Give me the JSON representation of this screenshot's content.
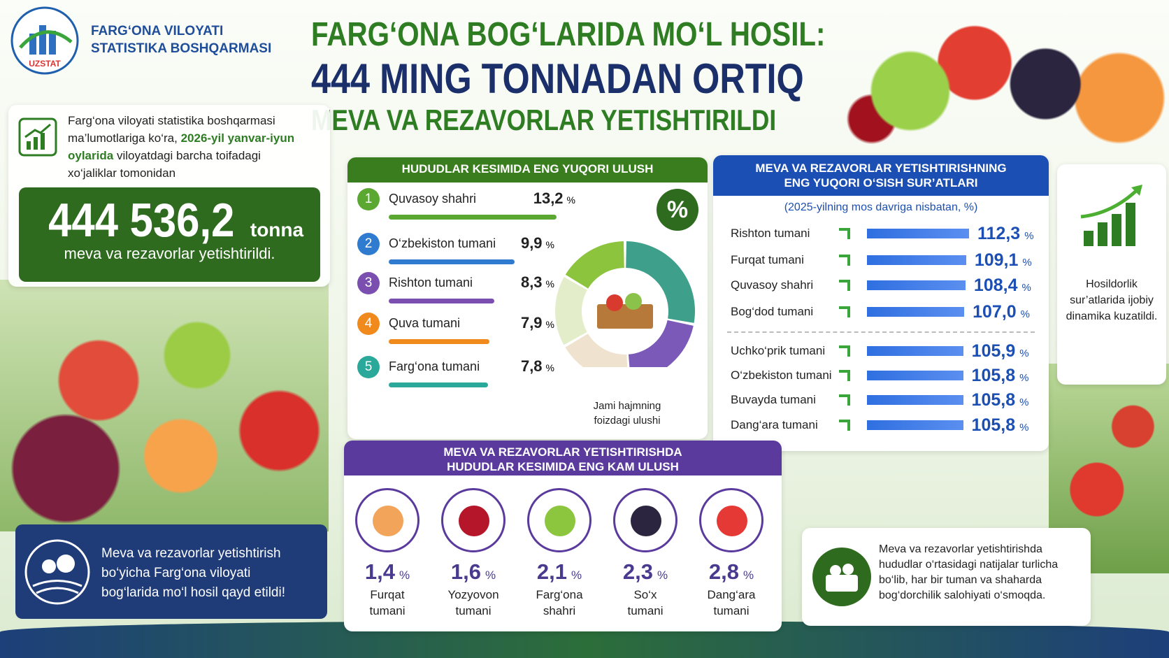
{
  "header": {
    "org_lines": [
      "FARG‘ONA VILOYATI",
      "STATISTIKA BOSHQARMASI"
    ],
    "logo_text": "UZSTAT",
    "title_lines": [
      "FARG‘ONA BOG‘LARIDA MO‘L HOSIL:",
      "444 MING TONNADAN ORTIQ",
      "MEVA VA REZAVORLAR YETISHTIRILDI"
    ]
  },
  "intro": {
    "before": "Farg‘ona viloyati statistika boshqarmasi ma’lumotlariga ko‘ra,",
    "bold": "2026-yil yanvar-iyun oylarida",
    "after": "viloyatdagi barcha toifadagi xo‘jaliklar tomonidan"
  },
  "total": {
    "value": "444 536,2",
    "unit": "tonna",
    "caption": "meva va rezavorlar yetishtirildi."
  },
  "top_share": {
    "title": "HUDUDLAR KESIMIDA ENG YUQORI ULUSH",
    "unit": "%",
    "symbol": "%",
    "donut_caption": "Jami hajmning foizdagi ulushi",
    "items": [
      {
        "rank": 1,
        "name": "Quvasoy shahri",
        "value": 13.2,
        "label": "13,2"
      },
      {
        "rank": 2,
        "name": "O‘zbekiston tumani",
        "value": 9.9,
        "label": "9,9"
      },
      {
        "rank": 3,
        "name": "Rishton tumani",
        "value": 8.3,
        "label": "8,3"
      },
      {
        "rank": 4,
        "name": "Quva tumani",
        "value": 7.9,
        "label": "7,9"
      },
      {
        "rank": 5,
        "name": "Farg‘ona tumani",
        "value": 7.8,
        "label": "7,8"
      }
    ]
  },
  "growth": {
    "title_lines": [
      "MEVA VA REZAVORLAR YETISHTIRISHNING",
      "ENG YUQORI O‘SISH SUR’ATLARI"
    ],
    "subtitle": "(2025-yilning mos davriga nisbatan, %)",
    "unit": "%",
    "items": [
      {
        "name": "Rishton tumani",
        "value": 112.3,
        "label": "112,3"
      },
      {
        "name": "Furqat tumani",
        "value": 109.1,
        "label": "109,1"
      },
      {
        "name": "Quvasoy shahri",
        "value": 108.4,
        "label": "108,4"
      },
      {
        "name": "Bog‘dod tumani",
        "value": 107.0,
        "label": "107,0"
      },
      {
        "name": "Uchko‘prik tumani",
        "value": 105.9,
        "label": "105,9"
      },
      {
        "name": "O‘zbekiston tumani",
        "value": 105.8,
        "label": "105,8"
      },
      {
        "name": "Buvayda tumani",
        "value": 105.8,
        "label": "105,8"
      },
      {
        "name": "Dang‘ara tumani",
        "value": 105.8,
        "label": "105,8"
      }
    ],
    "note": "Hosildorlik sur’atlarida ijobiy dinamika kuzatildi."
  },
  "lowest": {
    "title_lines": [
      "MEVA VA REZAVORLAR YETISHTIRISHDA",
      "HUDUDLAR KESIMIDA ENG KAM ULUSH"
    ],
    "unit": "%",
    "items": [
      {
        "value": 1.4,
        "label": "1,4",
        "name_lines": [
          "Furqat",
          "tumani"
        ]
      },
      {
        "value": 1.6,
        "label": "1,6",
        "name_lines": [
          "Yozyovon",
          "tumani"
        ]
      },
      {
        "value": 2.1,
        "label": "2,1",
        "name_lines": [
          "Farg‘ona",
          "shahri"
        ]
      },
      {
        "value": 2.3,
        "label": "2,3",
        "name_lines": [
          "So‘x",
          "tumani"
        ]
      },
      {
        "value": 2.8,
        "label": "2,8",
        "name_lines": [
          "Dang‘ara",
          "tumani"
        ]
      }
    ]
  },
  "bottom_left": "Meva va rezavorlar yetishtirish bo‘yicha Farg‘ona viloyati bog‘larida mo‘l hosil qayd etildi!",
  "bottom_right": "Meva va rezavorlar yetishtirishda hududlar o‘rtasidagi natijalar turlicha bo‘lib, har bir tuman va shaharda bog‘dorchilik salohiyati o‘smoqda."
}
